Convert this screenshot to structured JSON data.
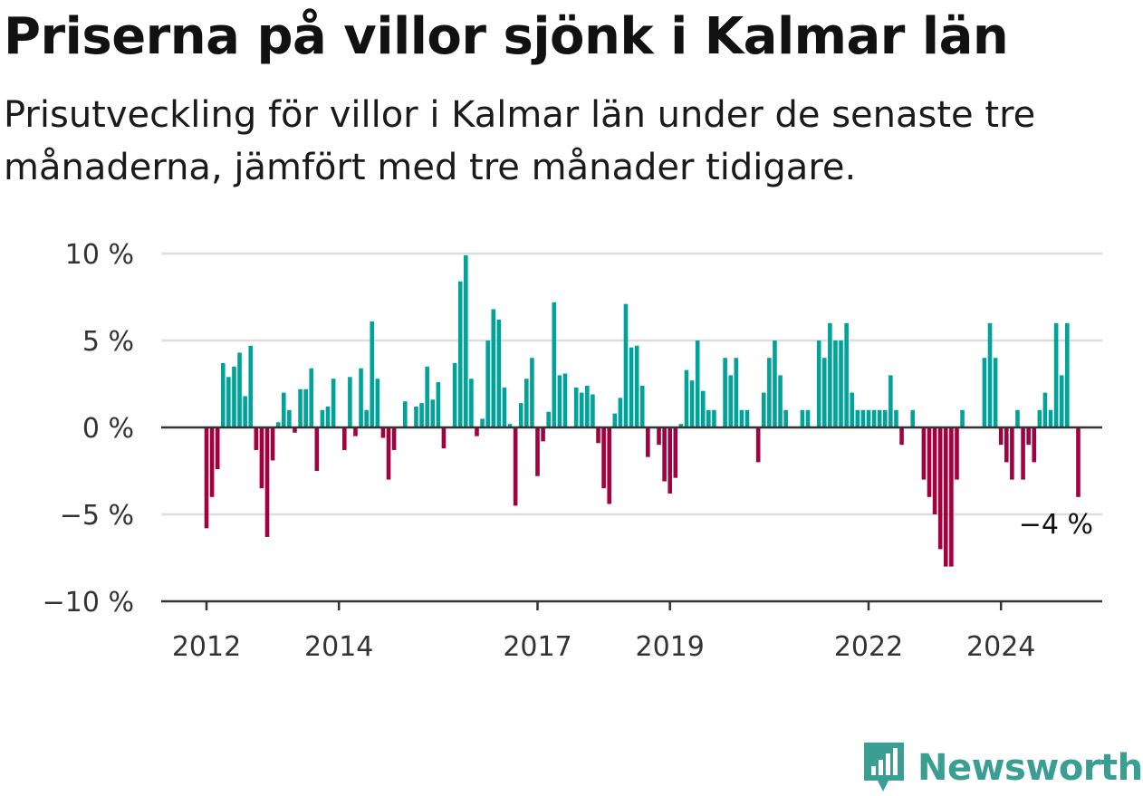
{
  "header": {
    "title": "Priserna på villor sjönk i Kalmar län",
    "subtitle": "Prisutveckling för villor i Kalmar län under de senaste tre månaderna, jämfört med tre månader tidigare."
  },
  "logo": {
    "text": "Newsworthy",
    "icon": "newsworthy-chart-badge-icon"
  },
  "colors": {
    "positive": "#00a39a",
    "negative": "#a3003f",
    "grid": "#dddddd",
    "axis": "#333333"
  },
  "chart_data": {
    "type": "bar",
    "title": "",
    "xlabel": "",
    "ylabel": "",
    "ylim": [
      -10,
      10
    ],
    "yticks": [
      10,
      5,
      0,
      -5,
      -10
    ],
    "ytick_labels": [
      "10 %",
      "5 %",
      "0 %",
      "−5 %",
      "−10 %"
    ],
    "xticks": [
      2012,
      2014,
      2017,
      2019,
      2022,
      2024
    ],
    "xtick_labels": [
      "2012",
      "2014",
      "2017",
      "2019",
      "2022",
      "2024"
    ],
    "start": "2012-01",
    "frequency": "monthly",
    "grid": true,
    "last_value_label": "−4 %",
    "values": [
      -5.8,
      -4.0,
      -2.4,
      3.7,
      2.9,
      3.5,
      4.3,
      1.8,
      4.7,
      -1.3,
      -3.5,
      -6.3,
      -1.9,
      0.3,
      2.0,
      1.0,
      -0.3,
      2.2,
      2.2,
      3.4,
      -2.5,
      1.0,
      1.2,
      2.8,
      0.0,
      -1.3,
      2.9,
      -0.5,
      3.4,
      1.0,
      6.1,
      2.8,
      -0.6,
      -3.0,
      -1.3,
      0.0,
      1.5,
      0.0,
      1.2,
      1.4,
      3.5,
      1.6,
      2.6,
      -1.2,
      0.0,
      3.7,
      8.4,
      9.9,
      2.8,
      -0.5,
      0.5,
      5.0,
      6.8,
      6.2,
      2.3,
      0.2,
      -4.5,
      1.4,
      2.8,
      4.0,
      -2.8,
      -0.8,
      0.9,
      7.2,
      3.0,
      3.1,
      0.0,
      2.3,
      2.0,
      2.4,
      1.9,
      -0.9,
      -3.5,
      -4.4,
      0.8,
      1.7,
      7.1,
      4.6,
      4.7,
      2.4,
      -1.7,
      0.0,
      -1.0,
      -3.1,
      -3.8,
      -2.9,
      0.2,
      3.3,
      2.7,
      5.0,
      2.1,
      1.0,
      1.0,
      0.0,
      4.0,
      3.0,
      4.0,
      1.0,
      1.0,
      0.0,
      -2.0,
      2.0,
      4.0,
      5.0,
      3.0,
      1.0,
      0.0,
      0.0,
      1.0,
      1.0,
      0.0,
      5.0,
      4.0,
      6.0,
      5.0,
      5.0,
      6.0,
      2.0,
      1.0,
      1.0,
      1.0,
      1.0,
      1.0,
      1.0,
      3.0,
      1.0,
      -1.0,
      0.0,
      1.0,
      0.0,
      -3.0,
      -4.0,
      -5.0,
      -7.0,
      -8.0,
      -8.0,
      -3.0,
      1.0,
      0.0,
      0.0,
      0.0,
      4.0,
      6.0,
      4.0,
      -1.0,
      -2.0,
      -3.0,
      1.0,
      -3.0,
      -1.0,
      -2.0,
      1.0,
      2.0,
      1.0,
      6.0,
      3.0,
      6.0,
      0.0,
      -4.0
    ]
  }
}
